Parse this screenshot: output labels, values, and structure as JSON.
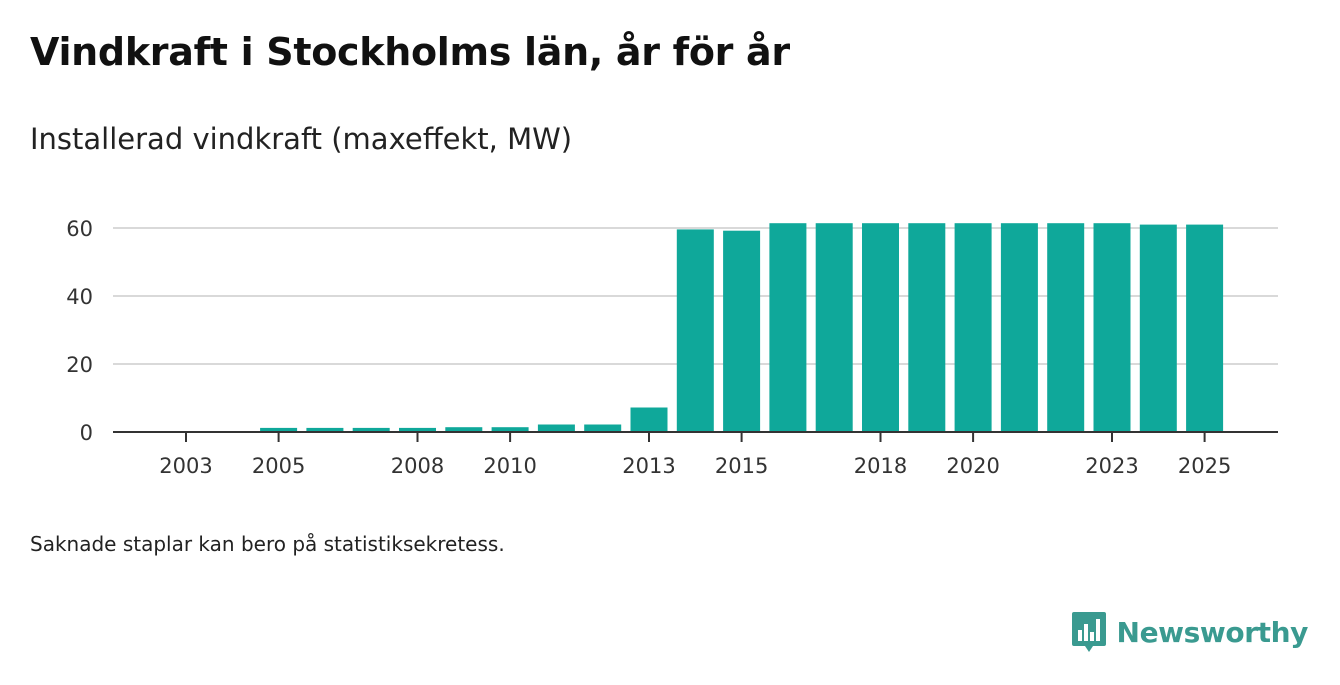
{
  "title": "Vindkraft i Stockholms län, år för år",
  "subtitle": "Installerad vindkraft (maxeffekt, MW)",
  "note": "Saknade staplar kan bero på statistiksekretess.",
  "brand": {
    "name": "Newsworthy",
    "color": "#3a9a90"
  },
  "chart_data": {
    "type": "bar",
    "title": "Vindkraft i Stockholms län, år för år",
    "ylabel": "Installerad vindkraft (maxeffekt, MW)",
    "xlabel": "",
    "bar_color": "#0fa89a",
    "ylim": [
      0,
      65
    ],
    "yticks": [
      0,
      20,
      40,
      60
    ],
    "xticks": [
      "2003",
      "2005",
      "2008",
      "2010",
      "2013",
      "2015",
      "2018",
      "2020",
      "2023",
      "2025"
    ],
    "categories": [
      "2003",
      "2004",
      "2005",
      "2006",
      "2007",
      "2008",
      "2009",
      "2010",
      "2011",
      "2012",
      "2013",
      "2014",
      "2015",
      "2016",
      "2017",
      "2018",
      "2019",
      "2020",
      "2021",
      "2022",
      "2023",
      "2024",
      "2025"
    ],
    "values": [
      0,
      0,
      1.2,
      1.2,
      1.2,
      1.2,
      1.4,
      1.4,
      2.2,
      2.2,
      7.2,
      59.6,
      59.2,
      61.4,
      61.4,
      61.4,
      61.4,
      61.4,
      61.4,
      61.4,
      61.4,
      61.0,
      61.0
    ]
  }
}
